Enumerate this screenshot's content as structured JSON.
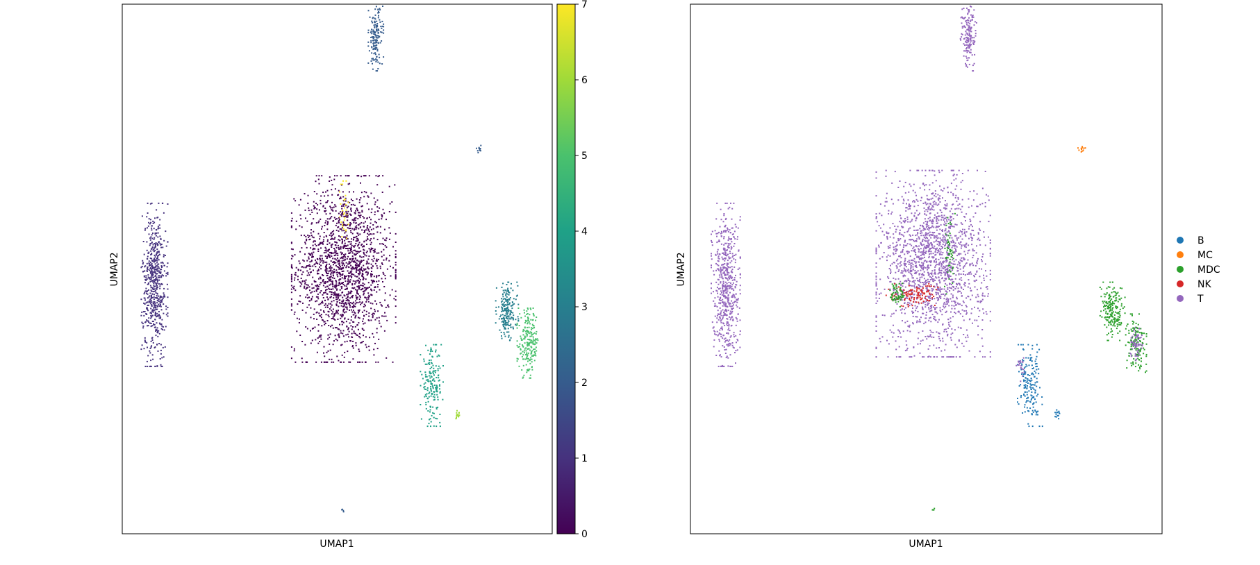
{
  "chart_data": [
    {
      "type": "scatter",
      "title": "",
      "xlabel": "UMAP1",
      "ylabel": "UMAP2",
      "color_by": "numeric cluster value",
      "colormap": "viridis",
      "colorbar": {
        "min": 0,
        "max": 7,
        "ticks": [
          "0",
          "1",
          "2",
          "3",
          "4",
          "5",
          "6",
          "7"
        ]
      },
      "xlim": [
        0,
        1
      ],
      "ylim": [
        0,
        1
      ],
      "grid": false,
      "axis_ticks_shown": false,
      "clusters": [
        {
          "value": 0,
          "x": 0.515,
          "y": 0.5,
          "sx": 0.055,
          "sy": 0.08,
          "n": 1800
        },
        {
          "value": 1,
          "x": 0.075,
          "y": 0.47,
          "sx": 0.014,
          "sy": 0.07,
          "n": 600
        },
        {
          "value": 2,
          "x": 0.59,
          "y": 0.94,
          "sx": 0.008,
          "sy": 0.03,
          "n": 160
        },
        {
          "value": 2,
          "x": 0.83,
          "y": 0.725,
          "sx": 0.004,
          "sy": 0.004,
          "n": 12
        },
        {
          "value": 3,
          "x": 0.895,
          "y": 0.42,
          "sx": 0.012,
          "sy": 0.025,
          "n": 200
        },
        {
          "value": 4,
          "x": 0.72,
          "y": 0.28,
          "sx": 0.012,
          "sy": 0.035,
          "n": 180
        },
        {
          "value": 5,
          "x": 0.945,
          "y": 0.36,
          "sx": 0.012,
          "sy": 0.03,
          "n": 220
        },
        {
          "value": 6,
          "x": 0.78,
          "y": 0.225,
          "sx": 0.004,
          "sy": 0.004,
          "n": 15
        },
        {
          "value": 7,
          "x": 0.515,
          "y": 0.6,
          "sx": 0.005,
          "sy": 0.03,
          "n": 30
        },
        {
          "value": 2,
          "x": 0.515,
          "y": 0.045,
          "sx": 0.002,
          "sy": 0.002,
          "n": 4
        }
      ]
    },
    {
      "type": "scatter",
      "title": "",
      "xlabel": "UMAP1",
      "ylabel": "UMAP2",
      "color_by": "cell type",
      "xlim": [
        0,
        1
      ],
      "ylim": [
        0,
        1
      ],
      "grid": false,
      "axis_ticks_shown": false,
      "legend": {
        "position": "right",
        "entries": [
          {
            "label": "B",
            "color": "#1f77b4"
          },
          {
            "label": "MC",
            "color": "#ff7f0e"
          },
          {
            "label": "MDC",
            "color": "#2ca02c"
          },
          {
            "label": "NK",
            "color": "#d62728"
          },
          {
            "label": "T",
            "color": "#9467bd"
          }
        ]
      },
      "clusters": [
        {
          "label": "T",
          "x": 0.515,
          "y": 0.51,
          "sx": 0.055,
          "sy": 0.08,
          "n": 1800
        },
        {
          "label": "T",
          "x": 0.075,
          "y": 0.47,
          "sx": 0.014,
          "sy": 0.07,
          "n": 600
        },
        {
          "label": "T",
          "x": 0.59,
          "y": 0.94,
          "sx": 0.008,
          "sy": 0.03,
          "n": 160
        },
        {
          "label": "NK",
          "x": 0.47,
          "y": 0.45,
          "sx": 0.025,
          "sy": 0.01,
          "n": 120
        },
        {
          "label": "MDC",
          "x": 0.44,
          "y": 0.455,
          "sx": 0.008,
          "sy": 0.012,
          "n": 60
        },
        {
          "label": "MDC",
          "x": 0.55,
          "y": 0.53,
          "sx": 0.005,
          "sy": 0.035,
          "n": 50
        },
        {
          "label": "MDC",
          "x": 0.895,
          "y": 0.42,
          "sx": 0.012,
          "sy": 0.025,
          "n": 200
        },
        {
          "label": "MDC",
          "x": 0.945,
          "y": 0.36,
          "sx": 0.01,
          "sy": 0.025,
          "n": 150
        },
        {
          "label": "T",
          "x": 0.945,
          "y": 0.36,
          "sx": 0.006,
          "sy": 0.015,
          "n": 60
        },
        {
          "label": "B",
          "x": 0.72,
          "y": 0.28,
          "sx": 0.012,
          "sy": 0.035,
          "n": 180
        },
        {
          "label": "T",
          "x": 0.7,
          "y": 0.31,
          "sx": 0.004,
          "sy": 0.01,
          "n": 20
        },
        {
          "label": "B",
          "x": 0.78,
          "y": 0.225,
          "sx": 0.004,
          "sy": 0.004,
          "n": 15
        },
        {
          "label": "MC",
          "x": 0.83,
          "y": 0.725,
          "sx": 0.004,
          "sy": 0.004,
          "n": 12
        },
        {
          "label": "T",
          "x": 0.515,
          "y": 0.6,
          "sx": 0.005,
          "sy": 0.03,
          "n": 30
        },
        {
          "label": "MDC",
          "x": 0.515,
          "y": 0.045,
          "sx": 0.002,
          "sy": 0.002,
          "n": 4
        }
      ]
    }
  ]
}
